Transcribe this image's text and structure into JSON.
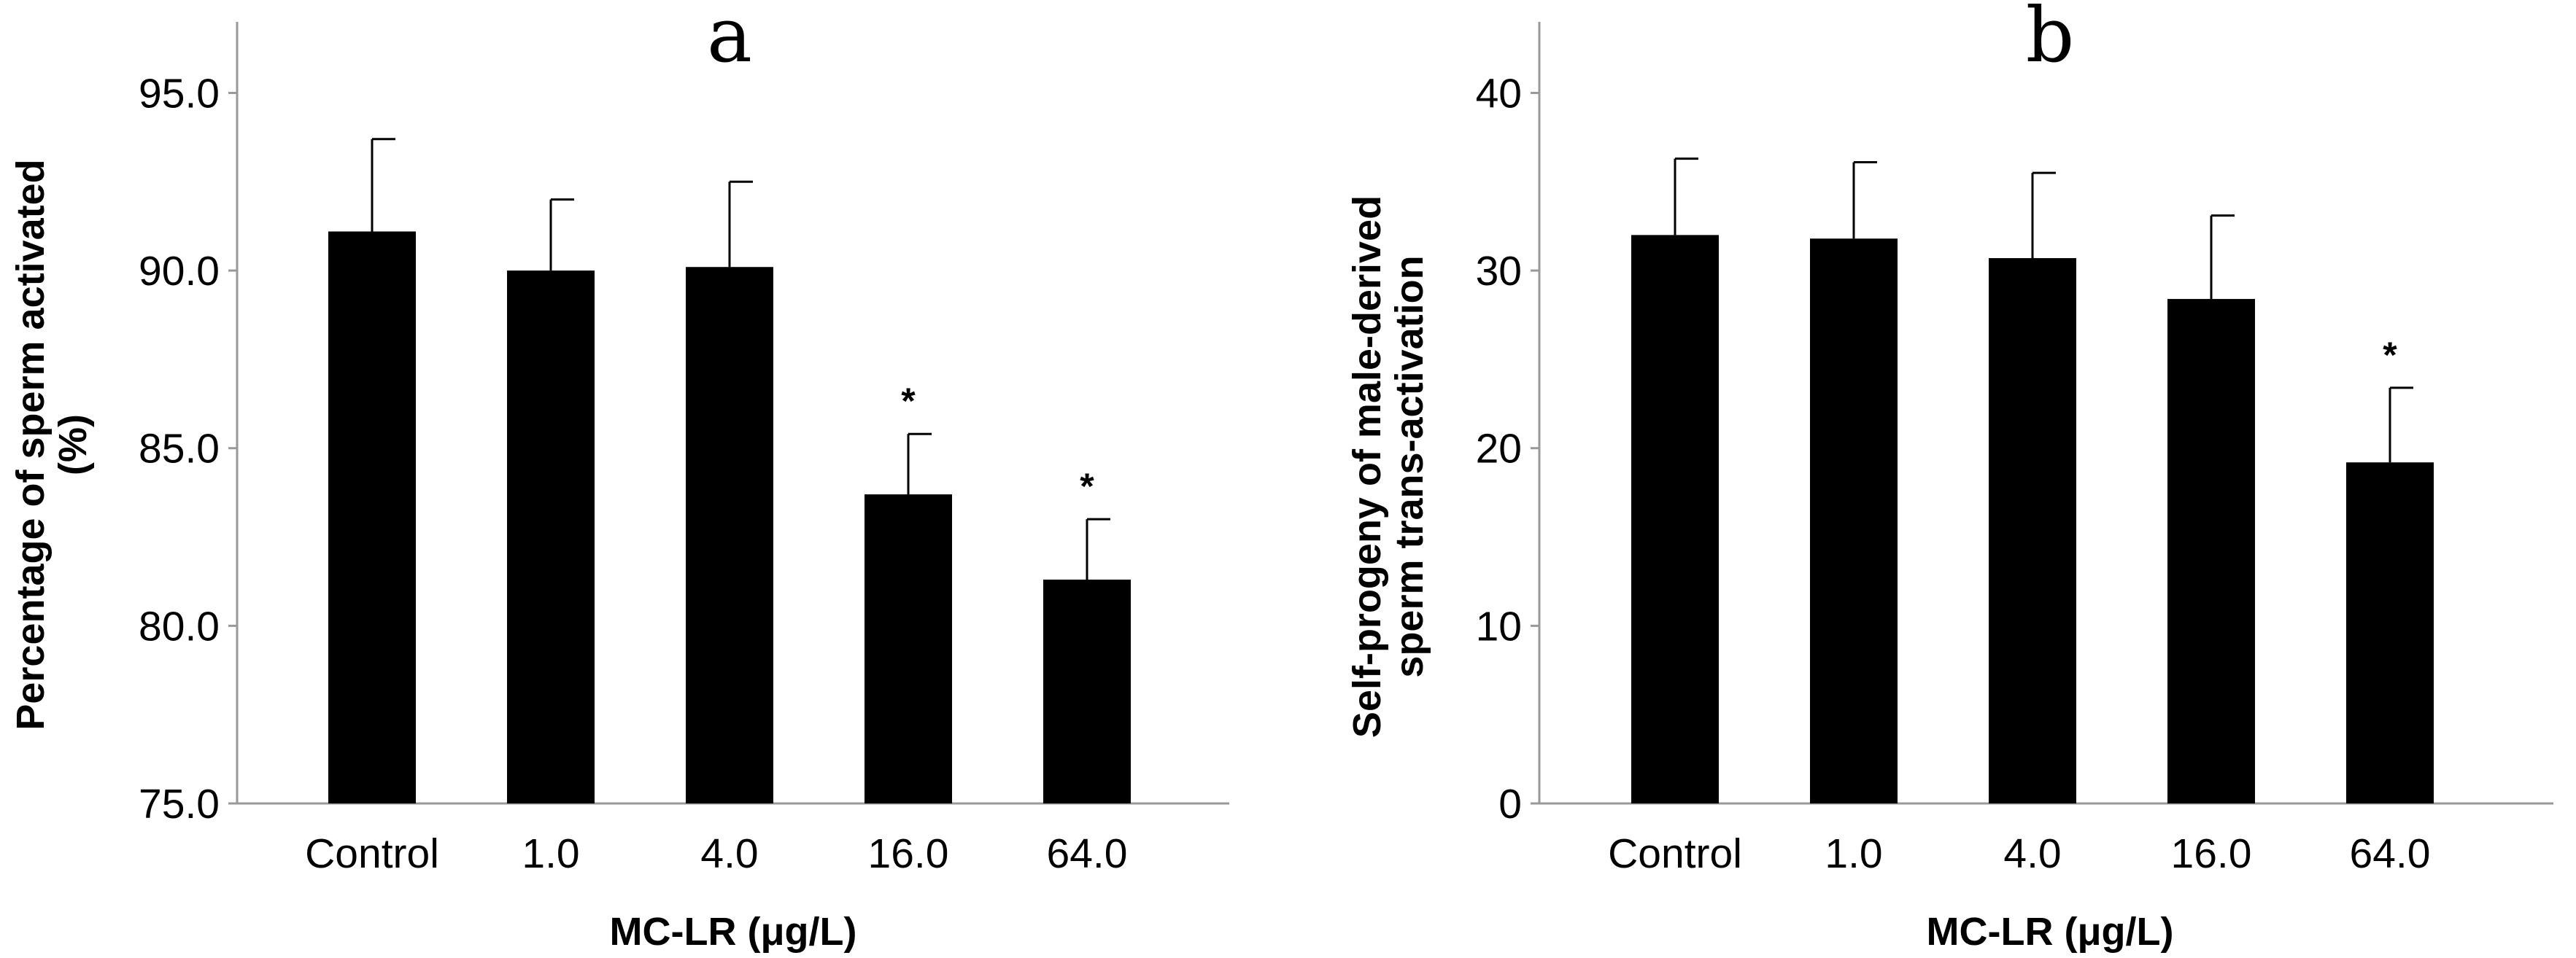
{
  "chart_data": [
    {
      "type": "bar",
      "panel": "a",
      "categories": [
        "Control",
        "1.0",
        "4.0",
        "16.0",
        "64.0"
      ],
      "values": [
        91.1,
        90.0,
        90.1,
        83.7,
        81.3
      ],
      "error_upper": [
        93.7,
        92.0,
        92.5,
        85.4,
        83.0
      ],
      "significance": [
        "",
        "",
        "",
        "*",
        "*"
      ],
      "ylim": [
        75.0,
        97.0
      ],
      "yticks": [
        "75.0",
        "80.0",
        "85.0",
        "90.0",
        "95.0"
      ],
      "ytick_values": [
        75,
        80,
        85,
        90,
        95
      ],
      "xlabel": "MC-LR (μg/L)",
      "ylabel_lines": [
        "Percentage of sperm activated",
        "(%)"
      ],
      "bar_color": "#000000",
      "axis_color": "#999999"
    },
    {
      "type": "bar",
      "panel": "b",
      "categories": [
        "Control",
        "1.0",
        "4.0",
        "16.0",
        "64.0"
      ],
      "values": [
        32.0,
        31.8,
        30.7,
        28.4,
        19.2
      ],
      "error_upper": [
        36.3,
        36.1,
        35.5,
        33.1,
        23.4
      ],
      "significance": [
        "",
        "",
        "",
        "",
        "*"
      ],
      "ylim": [
        0,
        44
      ],
      "yticks": [
        "0",
        "10",
        "20",
        "30",
        "40"
      ],
      "ytick_values": [
        0,
        10,
        20,
        30,
        40
      ],
      "xlabel": "MC-LR (μg/L)",
      "ylabel_lines": [
        "Self-progeny of male-derived",
        "sperm trans-activation"
      ],
      "bar_color": "#000000",
      "axis_color": "#999999"
    }
  ]
}
